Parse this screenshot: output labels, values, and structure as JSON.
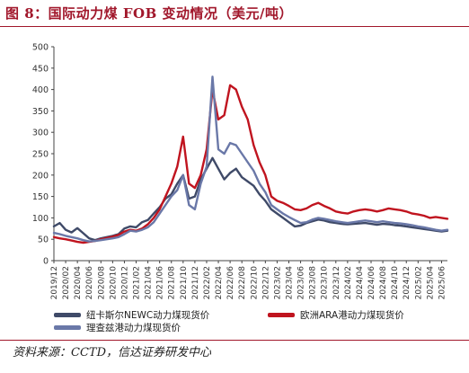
{
  "figure": {
    "title": "图 8：国际动力煤 FOB 变动情况（美元/吨）",
    "source": "资料来源：CCTD，信达证券研发中心"
  },
  "chart_data": {
    "type": "line",
    "title": "",
    "xlabel": "",
    "ylabel": "",
    "ylim": [
      0,
      500
    ],
    "yticks": [
      "0",
      "50",
      "100",
      "150",
      "200",
      "250",
      "300",
      "350",
      "400",
      "450",
      "500"
    ],
    "xticks": [
      "2019/12",
      "2020/02",
      "2020/04",
      "2020/06",
      "2020/08",
      "2020/10",
      "2020/12",
      "2021/02",
      "2021/04",
      "2021/06",
      "2021/08",
      "2021/10",
      "2021/12",
      "2022/02",
      "2022/04",
      "2022/06",
      "2022/08",
      "2022/10",
      "2022/12",
      "2023/02",
      "2023/04",
      "2023/06",
      "2023/08",
      "2023/10",
      "2023/12",
      "2024/02",
      "2024/04",
      "2024/06",
      "2024/08",
      "2024/10",
      "2024/12",
      "2025/02",
      "2025/04",
      "2025/06"
    ],
    "grid": false,
    "legend_position": "bottom",
    "series": [
      {
        "name": "纽卡斯尔NEWC动力煤现货价",
        "color": "#3f4a68",
        "points": [
          [
            "2019/12",
            80
          ],
          [
            "2020/01",
            88
          ],
          [
            "2020/02",
            72
          ],
          [
            "2020/03",
            66
          ],
          [
            "2020/04",
            76
          ],
          [
            "2020/05",
            64
          ],
          [
            "2020/06",
            52
          ],
          [
            "2020/07",
            48
          ],
          [
            "2020/08",
            52
          ],
          [
            "2020/09",
            55
          ],
          [
            "2020/10",
            58
          ],
          [
            "2020/11",
            62
          ],
          [
            "2020/12",
            75
          ],
          [
            "2021/01",
            80
          ],
          [
            "2021/02",
            78
          ],
          [
            "2021/03",
            90
          ],
          [
            "2021/04",
            95
          ],
          [
            "2021/05",
            110
          ],
          [
            "2021/06",
            125
          ],
          [
            "2021/07",
            145
          ],
          [
            "2021/08",
            155
          ],
          [
            "2021/09",
            180
          ],
          [
            "2021/10",
            200
          ],
          [
            "2021/11",
            145
          ],
          [
            "2021/12",
            150
          ],
          [
            "2022/01",
            190
          ],
          [
            "2022/02",
            215
          ],
          [
            "2022/03",
            240
          ],
          [
            "2022/04",
            215
          ],
          [
            "2022/05",
            190
          ],
          [
            "2022/06",
            205
          ],
          [
            "2022/07",
            215
          ],
          [
            "2022/08",
            195
          ],
          [
            "2022/09",
            185
          ],
          [
            "2022/10",
            175
          ],
          [
            "2022/11",
            155
          ],
          [
            "2022/12",
            140
          ],
          [
            "2023/01",
            120
          ],
          [
            "2023/02",
            110
          ],
          [
            "2023/03",
            100
          ],
          [
            "2023/04",
            90
          ],
          [
            "2023/05",
            80
          ],
          [
            "2023/06",
            82
          ],
          [
            "2023/07",
            88
          ],
          [
            "2023/08",
            92
          ],
          [
            "2023/09",
            96
          ],
          [
            "2023/10",
            94
          ],
          [
            "2023/11",
            90
          ],
          [
            "2023/12",
            88
          ],
          [
            "2024/01",
            86
          ],
          [
            "2024/02",
            85
          ],
          [
            "2024/03",
            86
          ],
          [
            "2024/04",
            87
          ],
          [
            "2024/05",
            88
          ],
          [
            "2024/06",
            86
          ],
          [
            "2024/07",
            84
          ],
          [
            "2024/08",
            86
          ],
          [
            "2024/09",
            85
          ],
          [
            "2024/10",
            83
          ],
          [
            "2024/11",
            82
          ],
          [
            "2024/12",
            80
          ],
          [
            "2025/01",
            78
          ],
          [
            "2025/02",
            76
          ],
          [
            "2025/03",
            74
          ],
          [
            "2025/04",
            72
          ],
          [
            "2025/05",
            70
          ],
          [
            "2025/06",
            68
          ],
          [
            "2025/07",
            70
          ]
        ]
      },
      {
        "name": "欧洲ARA港动力煤现货价",
        "color": "#c0141f",
        "points": [
          [
            "2019/12",
            55
          ],
          [
            "2020/01",
            52
          ],
          [
            "2020/02",
            50
          ],
          [
            "2020/03",
            47
          ],
          [
            "2020/04",
            44
          ],
          [
            "2020/05",
            42
          ],
          [
            "2020/06",
            44
          ],
          [
            "2020/07",
            46
          ],
          [
            "2020/08",
            50
          ],
          [
            "2020/09",
            53
          ],
          [
            "2020/10",
            56
          ],
          [
            "2020/11",
            60
          ],
          [
            "2020/12",
            68
          ],
          [
            "2021/01",
            72
          ],
          [
            "2021/02",
            70
          ],
          [
            "2021/03",
            75
          ],
          [
            "2021/04",
            85
          ],
          [
            "2021/05",
            100
          ],
          [
            "2021/06",
            120
          ],
          [
            "2021/07",
            150
          ],
          [
            "2021/08",
            180
          ],
          [
            "2021/09",
            220
          ],
          [
            "2021/10",
            290
          ],
          [
            "2021/11",
            180
          ],
          [
            "2021/12",
            170
          ],
          [
            "2022/01",
            200
          ],
          [
            "2022/02",
            260
          ],
          [
            "2022/03",
            400
          ],
          [
            "2022/04",
            330
          ],
          [
            "2022/05",
            340
          ],
          [
            "2022/06",
            410
          ],
          [
            "2022/07",
            400
          ],
          [
            "2022/08",
            360
          ],
          [
            "2022/09",
            330
          ],
          [
            "2022/10",
            270
          ],
          [
            "2022/11",
            230
          ],
          [
            "2022/12",
            200
          ],
          [
            "2023/01",
            150
          ],
          [
            "2023/02",
            140
          ],
          [
            "2023/03",
            135
          ],
          [
            "2023/04",
            128
          ],
          [
            "2023/05",
            120
          ],
          [
            "2023/06",
            118
          ],
          [
            "2023/07",
            122
          ],
          [
            "2023/08",
            130
          ],
          [
            "2023/09",
            135
          ],
          [
            "2023/10",
            128
          ],
          [
            "2023/11",
            122
          ],
          [
            "2023/12",
            115
          ],
          [
            "2024/01",
            112
          ],
          [
            "2024/02",
            110
          ],
          [
            "2024/03",
            115
          ],
          [
            "2024/04",
            118
          ],
          [
            "2024/05",
            120
          ],
          [
            "2024/06",
            118
          ],
          [
            "2024/07",
            115
          ],
          [
            "2024/08",
            118
          ],
          [
            "2024/09",
            122
          ],
          [
            "2024/10",
            120
          ],
          [
            "2024/11",
            118
          ],
          [
            "2024/12",
            115
          ],
          [
            "2025/01",
            110
          ],
          [
            "2025/02",
            108
          ],
          [
            "2025/03",
            105
          ],
          [
            "2025/04",
            100
          ],
          [
            "2025/05",
            102
          ],
          [
            "2025/06",
            100
          ],
          [
            "2025/07",
            98
          ]
        ]
      },
      {
        "name": "理查兹港动力煤现货价",
        "color": "#6a78a8",
        "points": [
          [
            "2019/12",
            65
          ],
          [
            "2020/01",
            62
          ],
          [
            "2020/02",
            58
          ],
          [
            "2020/03",
            55
          ],
          [
            "2020/04",
            52
          ],
          [
            "2020/05",
            48
          ],
          [
            "2020/06",
            45
          ],
          [
            "2020/07",
            46
          ],
          [
            "2020/08",
            48
          ],
          [
            "2020/09",
            50
          ],
          [
            "2020/10",
            52
          ],
          [
            "2020/11",
            55
          ],
          [
            "2020/12",
            62
          ],
          [
            "2021/01",
            70
          ],
          [
            "2021/02",
            68
          ],
          [
            "2021/03",
            72
          ],
          [
            "2021/04",
            78
          ],
          [
            "2021/05",
            90
          ],
          [
            "2021/06",
            110
          ],
          [
            "2021/07",
            130
          ],
          [
            "2021/08",
            150
          ],
          [
            "2021/09",
            165
          ],
          [
            "2021/10",
            200
          ],
          [
            "2021/11",
            130
          ],
          [
            "2021/12",
            120
          ],
          [
            "2022/01",
            180
          ],
          [
            "2022/02",
            220
          ],
          [
            "2022/03",
            430
          ],
          [
            "2022/04",
            260
          ],
          [
            "2022/05",
            250
          ],
          [
            "2022/06",
            275
          ],
          [
            "2022/07",
            270
          ],
          [
            "2022/08",
            250
          ],
          [
            "2022/09",
            230
          ],
          [
            "2022/10",
            210
          ],
          [
            "2022/11",
            180
          ],
          [
            "2022/12",
            160
          ],
          [
            "2023/01",
            130
          ],
          [
            "2023/02",
            120
          ],
          [
            "2023/03",
            110
          ],
          [
            "2023/04",
            102
          ],
          [
            "2023/05",
            95
          ],
          [
            "2023/06",
            88
          ],
          [
            "2023/07",
            90
          ],
          [
            "2023/08",
            96
          ],
          [
            "2023/09",
            100
          ],
          [
            "2023/10",
            98
          ],
          [
            "2023/11",
            95
          ],
          [
            "2023/12",
            92
          ],
          [
            "2024/01",
            90
          ],
          [
            "2024/02",
            88
          ],
          [
            "2024/03",
            90
          ],
          [
            "2024/04",
            92
          ],
          [
            "2024/05",
            94
          ],
          [
            "2024/06",
            92
          ],
          [
            "2024/07",
            90
          ],
          [
            "2024/08",
            92
          ],
          [
            "2024/09",
            90
          ],
          [
            "2024/10",
            88
          ],
          [
            "2024/11",
            87
          ],
          [
            "2024/12",
            85
          ],
          [
            "2025/01",
            83
          ],
          [
            "2025/02",
            80
          ],
          [
            "2025/03",
            78
          ],
          [
            "2025/04",
            75
          ],
          [
            "2025/05",
            72
          ],
          [
            "2025/06",
            70
          ],
          [
            "2025/07",
            72
          ]
        ]
      }
    ]
  }
}
